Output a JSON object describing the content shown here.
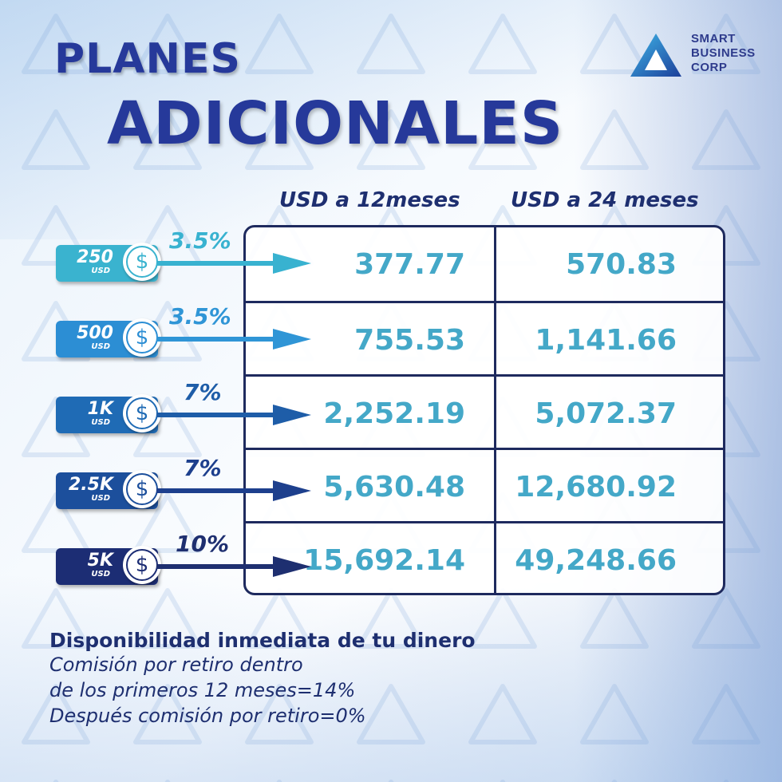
{
  "title": {
    "line1": "PLANES",
    "line2": "ADICIONALES"
  },
  "logo": {
    "lines": [
      "SMART",
      "BUSINESS",
      "CORP"
    ],
    "icon": "triangle-logo-icon"
  },
  "columns": [
    "USD a 12meses",
    "USD a 24 meses"
  ],
  "plans": [
    {
      "amount": "250",
      "currency": "USD",
      "rate": "3.5%",
      "m12": "377.77",
      "m24": "570.83",
      "color": "#3ab3cf",
      "arrow": "#38b2d0"
    },
    {
      "amount": "500",
      "currency": "USD",
      "rate": "3.5%",
      "m12": "755.53",
      "m24": "1,141.66",
      "color": "#2c8ed4",
      "arrow": "#2f95d6"
    },
    {
      "amount": "1K",
      "currency": "USD",
      "rate": "7%",
      "m12": "2,252.19",
      "m24": "5,072.37",
      "color": "#1f6bb5",
      "arrow": "#1e5da8"
    },
    {
      "amount": "2.5K",
      "currency": "USD",
      "rate": "7%",
      "m12": "5,630.48",
      "m24": "12,680.92",
      "color": "#1c4f9c",
      "arrow": "#1d3f8d"
    },
    {
      "amount": "5K",
      "currency": "USD",
      "rate": "10%",
      "m12": "15,692.14",
      "m24": "49,248.66",
      "color": "#1c2d74",
      "arrow": "#1e2f70"
    }
  ],
  "coin_symbol": "$",
  "footer": {
    "title": "Disponibilidad inmediata de tu dinero",
    "lines": [
      "Comisión por retiro dentro",
      "de los primeros 12 meses=14%",
      "Después comisión por retiro=0%"
    ]
  },
  "colors": {
    "navy": "#1e2f70",
    "title": "#26399a",
    "value": "#44a8c8"
  }
}
